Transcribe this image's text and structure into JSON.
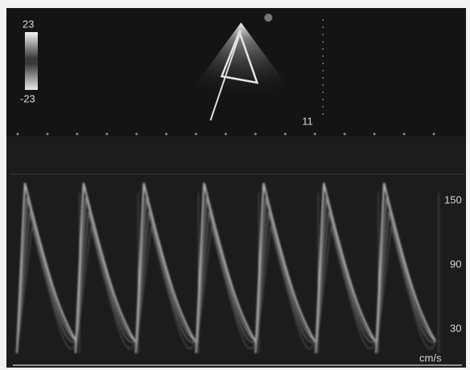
{
  "color_scale": {
    "max": "23",
    "min": "-23"
  },
  "depth_label": "11",
  "velocity_scale": {
    "ticks": [
      "150",
      "90",
      "30"
    ],
    "unit": "cm/s"
  }
}
